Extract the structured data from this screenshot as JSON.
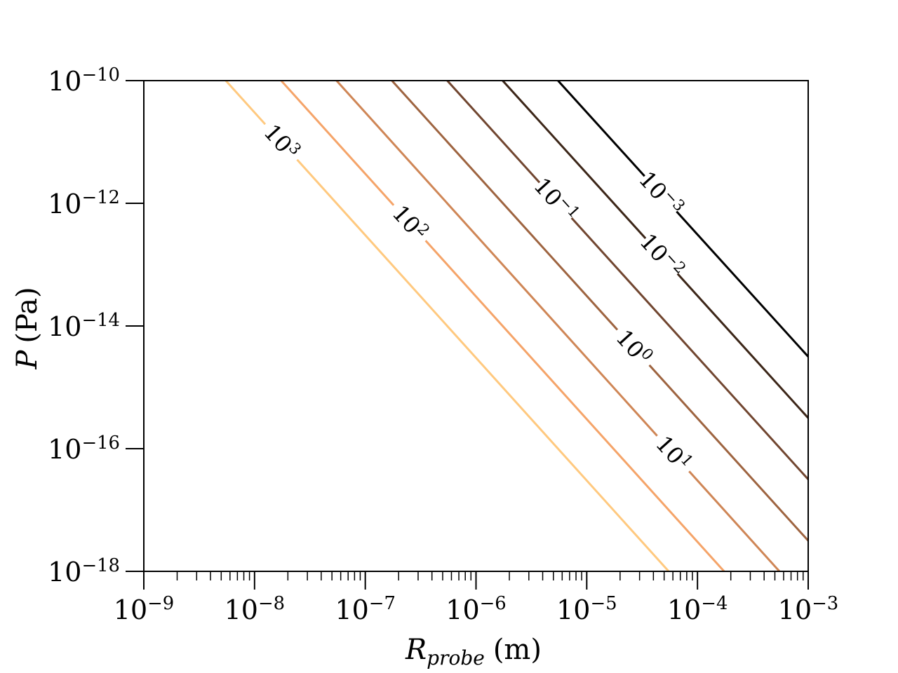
{
  "chart_data": {
    "type": "contour",
    "xlabel": {
      "symbol": "R",
      "subscript": "probe",
      "unit": "(m)"
    },
    "ylabel": {
      "symbol": "P",
      "unit": "(Pa)"
    },
    "xscale": "log",
    "yscale": "log",
    "xlim": [
      1e-09,
      0.001
    ],
    "ylim": [
      1e-18,
      1e-10
    ],
    "xticks": [
      {
        "value": 1e-09,
        "label": {
          "base": "10",
          "exponent": "−9"
        }
      },
      {
        "value": 1e-08,
        "label": {
          "base": "10",
          "exponent": "−8"
        }
      },
      {
        "value": 1e-07,
        "label": {
          "base": "10",
          "exponent": "−7"
        }
      },
      {
        "value": 1e-06,
        "label": {
          "base": "10",
          "exponent": "−6"
        }
      },
      {
        "value": 1e-05,
        "label": {
          "base": "10",
          "exponent": "−5"
        }
      },
      {
        "value": 0.0001,
        "label": {
          "base": "10",
          "exponent": "−4"
        }
      },
      {
        "value": 0.001,
        "label": {
          "base": "10",
          "exponent": "−3"
        }
      }
    ],
    "yticks": [
      {
        "value": 1e-18,
        "label": {
          "base": "10",
          "exponent": "−18"
        }
      },
      {
        "value": 1e-16,
        "label": {
          "base": "10",
          "exponent": "−16"
        }
      },
      {
        "value": 1e-14,
        "label": {
          "base": "10",
          "exponent": "−14"
        }
      },
      {
        "value": 1e-12,
        "label": {
          "base": "10",
          "exponent": "−12"
        }
      },
      {
        "value": 1e-10,
        "label": {
          "base": "10",
          "exponent": "−10"
        }
      }
    ],
    "series": [
      {
        "name": {
          "base": "10",
          "exponent": "3"
        },
        "color": "#ffc97f",
        "x": [
          5.5e-09,
          5.5e-05
        ],
        "y": [
          1e-10,
          1e-18
        ]
      },
      {
        "name": {
          "base": "10",
          "exponent": "2"
        },
        "color": "#f5a469",
        "x": [
          1.74e-08,
          0.000174
        ],
        "y": [
          1e-10,
          1e-18
        ]
      },
      {
        "name": {
          "base": "10",
          "exponent": "1"
        },
        "color": "#cf8656",
        "x": [
          5.5e-08,
          0.00055
        ],
        "y": [
          1e-10,
          1e-18
        ]
      },
      {
        "name": {
          "base": "10",
          "exponent": "0"
        },
        "color": "#9e6440",
        "x": [
          1.74e-07,
          0.001
        ],
        "y": [
          1e-10,
          3.16e-18
        ]
      },
      {
        "name": {
          "base": "10",
          "exponent": "−1"
        },
        "color": "#714630",
        "x": [
          5.5e-07,
          0.001
        ],
        "y": [
          1e-10,
          3.16e-17
        ]
      },
      {
        "name": {
          "base": "10",
          "exponent": "−2"
        },
        "color": "#3c2618",
        "x": [
          1.74e-06,
          0.001
        ],
        "y": [
          1e-10,
          3.16e-16
        ]
      },
      {
        "name": {
          "base": "10",
          "exponent": "−3"
        },
        "color": "#000000",
        "x": [
          5.5e-06,
          0.001
        ],
        "y": [
          1e-10,
          3.16e-15
        ]
      }
    ]
  }
}
